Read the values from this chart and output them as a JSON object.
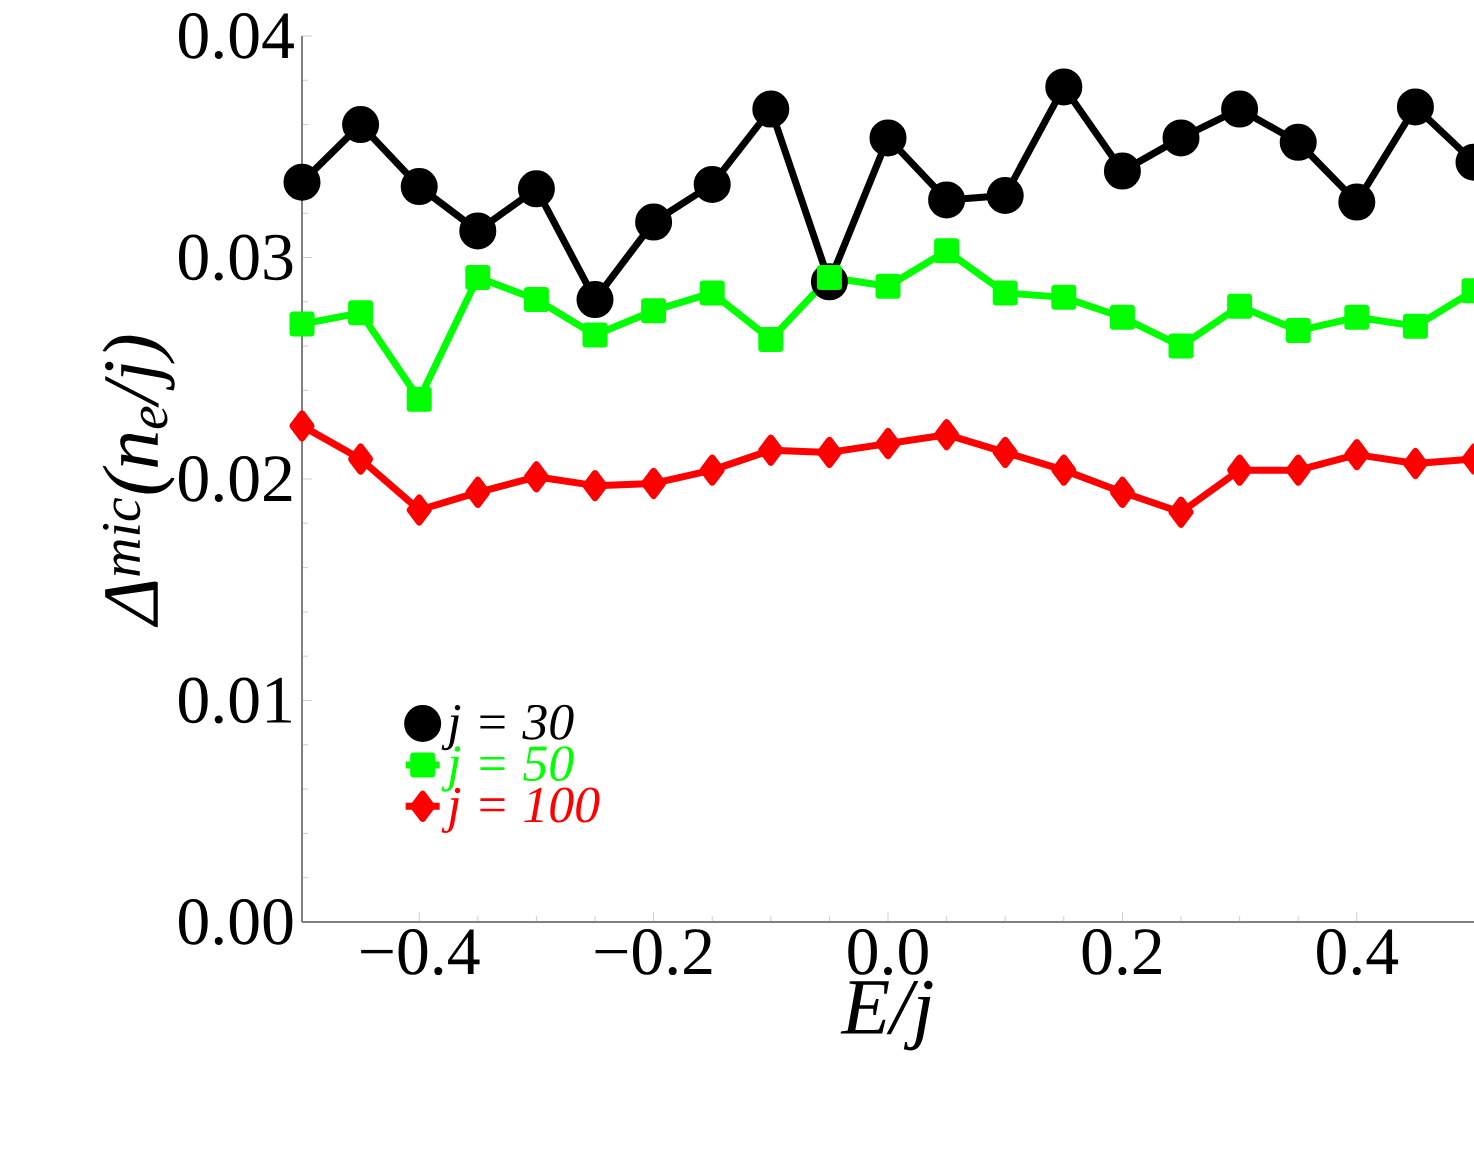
{
  "chart_data": {
    "type": "line",
    "xlabel": "E/j",
    "ylabel": "Δ$^{mic}$(n$_{e}$/j)",
    "x": [
      -0.5,
      -0.45,
      -0.4,
      -0.35,
      -0.3,
      -0.25,
      -0.2,
      -0.15,
      -0.1,
      -0.05,
      0.0,
      0.05,
      0.1,
      0.15,
      0.2,
      0.25,
      0.3,
      0.35,
      0.4,
      0.45,
      0.5
    ],
    "series": [
      {
        "name": "j = 30",
        "color": "#000000",
        "marker": "circle",
        "values": [
          0.0334,
          0.036,
          0.0332,
          0.0312,
          0.0331,
          0.0281,
          0.0316,
          0.0333,
          0.0367,
          0.0289,
          0.0354,
          0.0326,
          0.0328,
          0.0377,
          0.0339,
          0.0354,
          0.0367,
          0.0352,
          0.0325,
          0.0368,
          0.0343
        ]
      },
      {
        "name": "j = 50",
        "color": "#00ff00",
        "marker": "square",
        "values": [
          0.027,
          0.0275,
          0.0236,
          0.0291,
          0.0281,
          0.0265,
          0.0276,
          0.0284,
          0.0263,
          0.0291,
          0.0287,
          0.0303,
          0.0284,
          0.0282,
          0.0273,
          0.026,
          0.0278,
          0.0267,
          0.0273,
          0.0269,
          0.0285
        ]
      },
      {
        "name": "j = 100",
        "color": "#ff0000",
        "marker": "diamond",
        "values": [
          0.0224,
          0.0209,
          0.0186,
          0.0194,
          0.0201,
          0.0197,
          0.0198,
          0.0204,
          0.0213,
          0.0212,
          0.0216,
          0.022,
          0.0212,
          0.0204,
          0.0194,
          0.0185,
          0.0204,
          0.0204,
          0.0211,
          0.0207,
          0.0209
        ]
      }
    ],
    "xlim": [
      -0.5,
      0.5
    ],
    "ylim": [
      0,
      0.04
    ],
    "xticks": [
      {
        "value": -0.4,
        "label": "−0.4"
      },
      {
        "value": -0.2,
        "label": "−0.2"
      },
      {
        "value": 0,
        "label": "0.0"
      },
      {
        "value": 0.2,
        "label": "0.2"
      },
      {
        "value": 0.4,
        "label": "0.4"
      }
    ],
    "yticks": [
      {
        "value": 0,
        "label": "0.00"
      },
      {
        "value": 0.01,
        "label": "0.01"
      },
      {
        "value": 0.02,
        "label": "0.02"
      },
      {
        "value": 0.03,
        "label": "0.03"
      },
      {
        "value": 0.04,
        "label": "0.04"
      }
    ],
    "grid": false,
    "legend": "bottom left",
    "line_style": "solid"
  }
}
